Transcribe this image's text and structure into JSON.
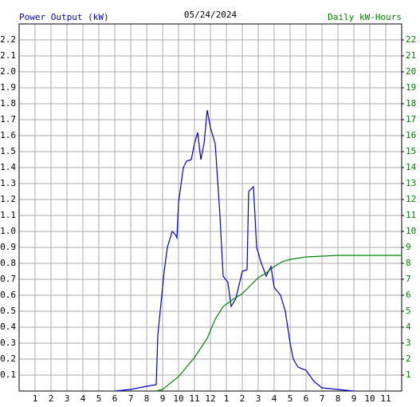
{
  "chart_data": {
    "type": "line",
    "title": "05/24/2024",
    "ylabel": "Power Output (kW)",
    "y2label": "Daily kW-Hours",
    "xlim": [
      0,
      24
    ],
    "xticks": [
      1,
      2,
      3,
      4,
      5,
      6,
      7,
      8,
      9,
      10,
      11,
      12,
      {
        "value": 13,
        "label": "1"
      },
      {
        "value": 14,
        "label": "2"
      },
      {
        "value": 15,
        "label": "3"
      },
      {
        "value": 16,
        "label": "4"
      },
      {
        "value": 17,
        "label": "5"
      },
      {
        "value": 18,
        "label": "6"
      },
      {
        "value": 19,
        "label": "7"
      },
      {
        "value": 20,
        "label": "8"
      },
      {
        "value": 21,
        "label": "9"
      },
      {
        "value": 22,
        "label": "10"
      },
      {
        "value": 23,
        "label": "11"
      }
    ],
    "ylim": [
      0,
      2.3
    ],
    "yticks": [
      0.1,
      0.2,
      0.3,
      0.4,
      0.5,
      0.6,
      0.7,
      0.8,
      0.9,
      {
        "value": 1,
        "label": "1.0"
      },
      1.1,
      1.2,
      1.3,
      1.4,
      1.5,
      1.6,
      1.7,
      1.8,
      1.9,
      {
        "value": 2,
        "label": "2.0"
      },
      2.1,
      2.2
    ],
    "y2lim": [
      0,
      23
    ],
    "y2ticks": [
      1,
      2,
      3,
      4,
      5,
      6,
      7,
      8,
      9,
      10,
      11,
      12,
      13,
      14,
      15,
      16,
      17,
      18,
      19,
      20,
      21,
      22
    ],
    "grid": true,
    "series": [
      {
        "name": "Power Output (kW)",
        "color": "#0000c0",
        "x": [
          6.0,
          7.0,
          8.0,
          8.6,
          8.7,
          8.9,
          9.1,
          9.3,
          9.6,
          9.8,
          9.9,
          10.0,
          10.3,
          10.5,
          10.8,
          11.0,
          11.2,
          11.4,
          11.6,
          11.8,
          12.0,
          12.3,
          12.6,
          12.8,
          13.1,
          13.3,
          13.6,
          14.0,
          14.3,
          14.4,
          14.7,
          14.9,
          15.2,
          15.5,
          15.8,
          16.0,
          16.4,
          16.7,
          17.0,
          17.2,
          17.5,
          18.0,
          18.5,
          19.0,
          20.0,
          21.0
        ],
        "values": [
          0,
          0.01,
          0.03,
          0.04,
          0.35,
          0.55,
          0.75,
          0.9,
          1.0,
          0.98,
          0.96,
          1.18,
          1.4,
          1.44,
          1.45,
          1.55,
          1.62,
          1.45,
          1.55,
          1.76,
          1.65,
          1.55,
          1.1,
          0.72,
          0.68,
          0.53,
          0.58,
          0.75,
          0.76,
          1.25,
          1.28,
          0.9,
          0.8,
          0.72,
          0.78,
          0.65,
          0.6,
          0.5,
          0.3,
          0.2,
          0.15,
          0.13,
          0.06,
          0.02,
          0.01,
          0
        ]
      },
      {
        "name": "Daily kW-Hours",
        "color": "#008000",
        "axis": "y2",
        "x": [
          8.6,
          9.0,
          10.0,
          11.0,
          11.8,
          12.3,
          12.8,
          13.5,
          14.0,
          14.5,
          15.0,
          15.5,
          16.0,
          16.5,
          17.0,
          18.0,
          19.0,
          20.0,
          24.0
        ],
        "values": [
          0,
          0.1,
          0.9,
          2.1,
          3.3,
          4.5,
          5.3,
          5.8,
          6.1,
          6.6,
          7.1,
          7.4,
          7.8,
          8.1,
          8.25,
          8.4,
          8.45,
          8.5,
          8.5
        ]
      }
    ]
  }
}
